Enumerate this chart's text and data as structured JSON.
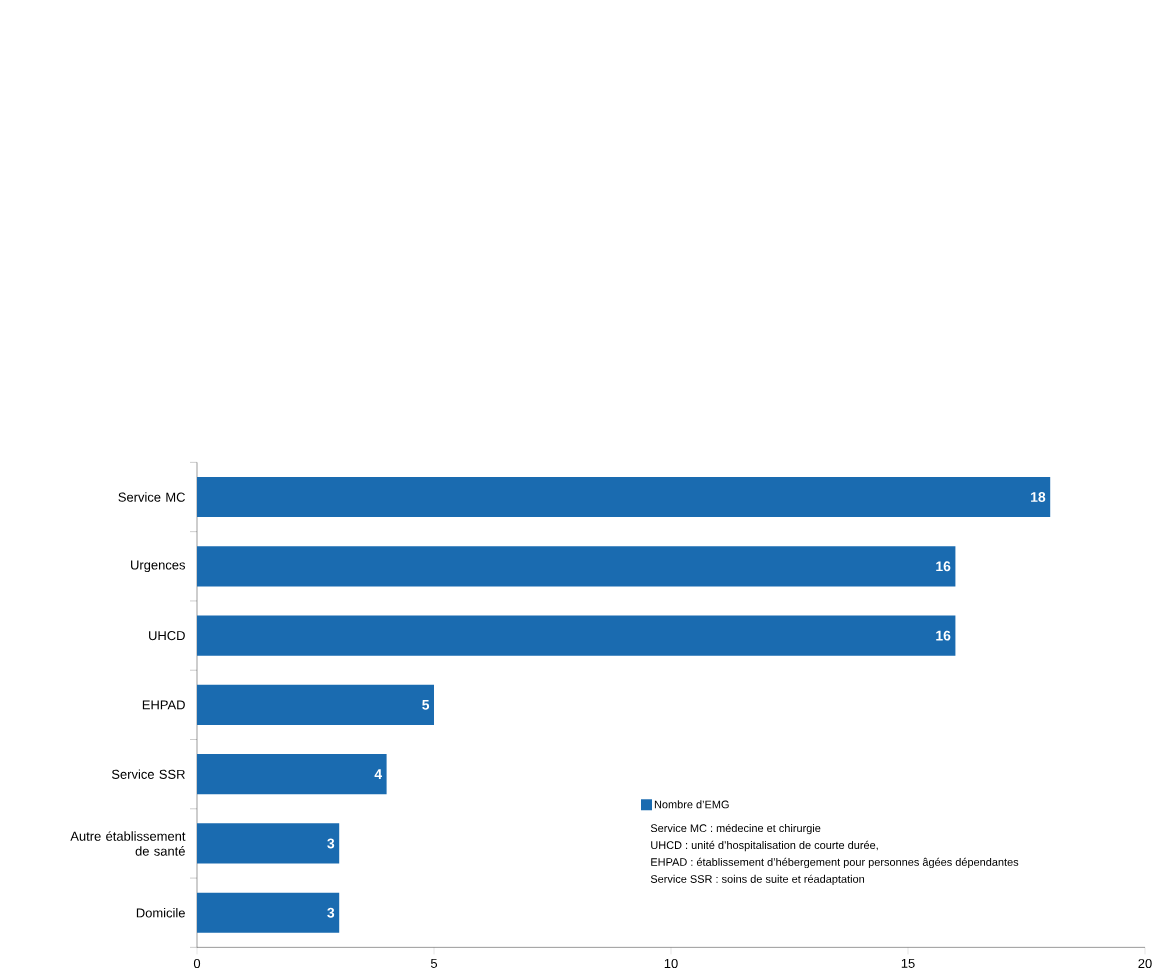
{
  "chart_data": {
    "type": "bar",
    "orientation": "horizontal",
    "categories": [
      "Service MC",
      "Urgences",
      "UHCD",
      "EHPAD",
      "Service SSR",
      "Autre établissement de santé",
      "Domicile"
    ],
    "series": [
      {
        "name": "Nombre d’EMG",
        "color": "#1a6bb0",
        "values": [
          18,
          16,
          16,
          5,
          4,
          3,
          3
        ]
      }
    ],
    "xlim": [
      0,
      20
    ],
    "xticks": [
      0,
      5,
      10,
      15,
      20
    ],
    "data_labels": true,
    "legend": "bottom right",
    "grid": false,
    "annotations": [
      "Service MC : médecine et chirurgie",
      "UHCD : unité d’hospitalisation de courte durée,",
      "EHPAD : établissement d’hébergement pour personnes âgées dépendantes",
      "Service SSR : soins de suite et réadaptation"
    ]
  }
}
